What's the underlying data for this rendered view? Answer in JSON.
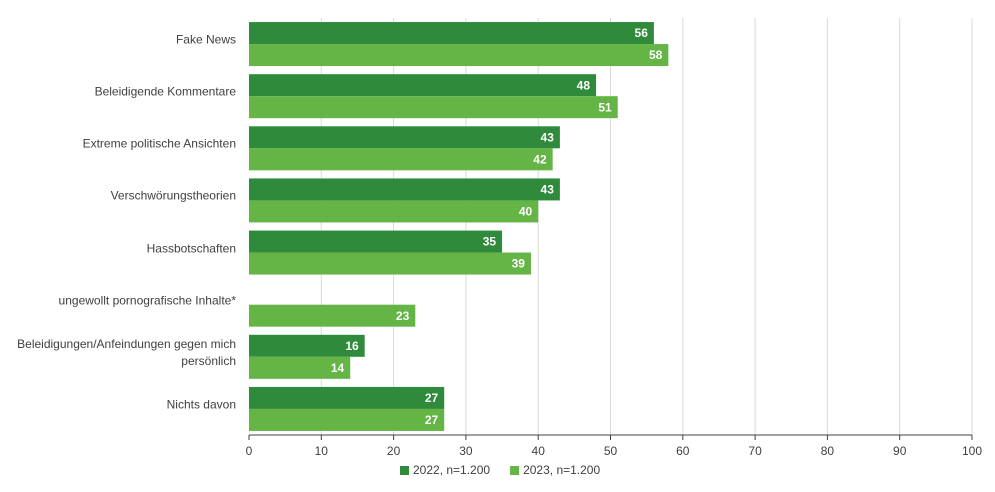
{
  "chart_data": {
    "type": "bar",
    "orientation": "horizontal",
    "categories": [
      "Fake News",
      "Beleidigende Kommentare",
      "Extreme politische Ansichten",
      "Verschwörungstheorien",
      "Hassbotschaften",
      "ungewollt pornografische Inhalte*",
      "Beleidigungen/Anfeindungen gegen mich persönlich",
      "Nichts davon"
    ],
    "series": [
      {
        "name": "2022, n=1.200",
        "color": "#2f8a3c",
        "values": [
          56,
          48,
          43,
          43,
          35,
          null,
          16,
          27
        ]
      },
      {
        "name": "2023, n=1.200",
        "color": "#64b446",
        "values": [
          58,
          51,
          42,
          40,
          39,
          23,
          14,
          27
        ]
      }
    ],
    "xlim": [
      0,
      100
    ],
    "xticks": [
      0,
      10,
      20,
      30,
      40,
      50,
      60,
      70,
      80,
      90,
      100
    ],
    "grid": true,
    "legend": "bottom"
  }
}
